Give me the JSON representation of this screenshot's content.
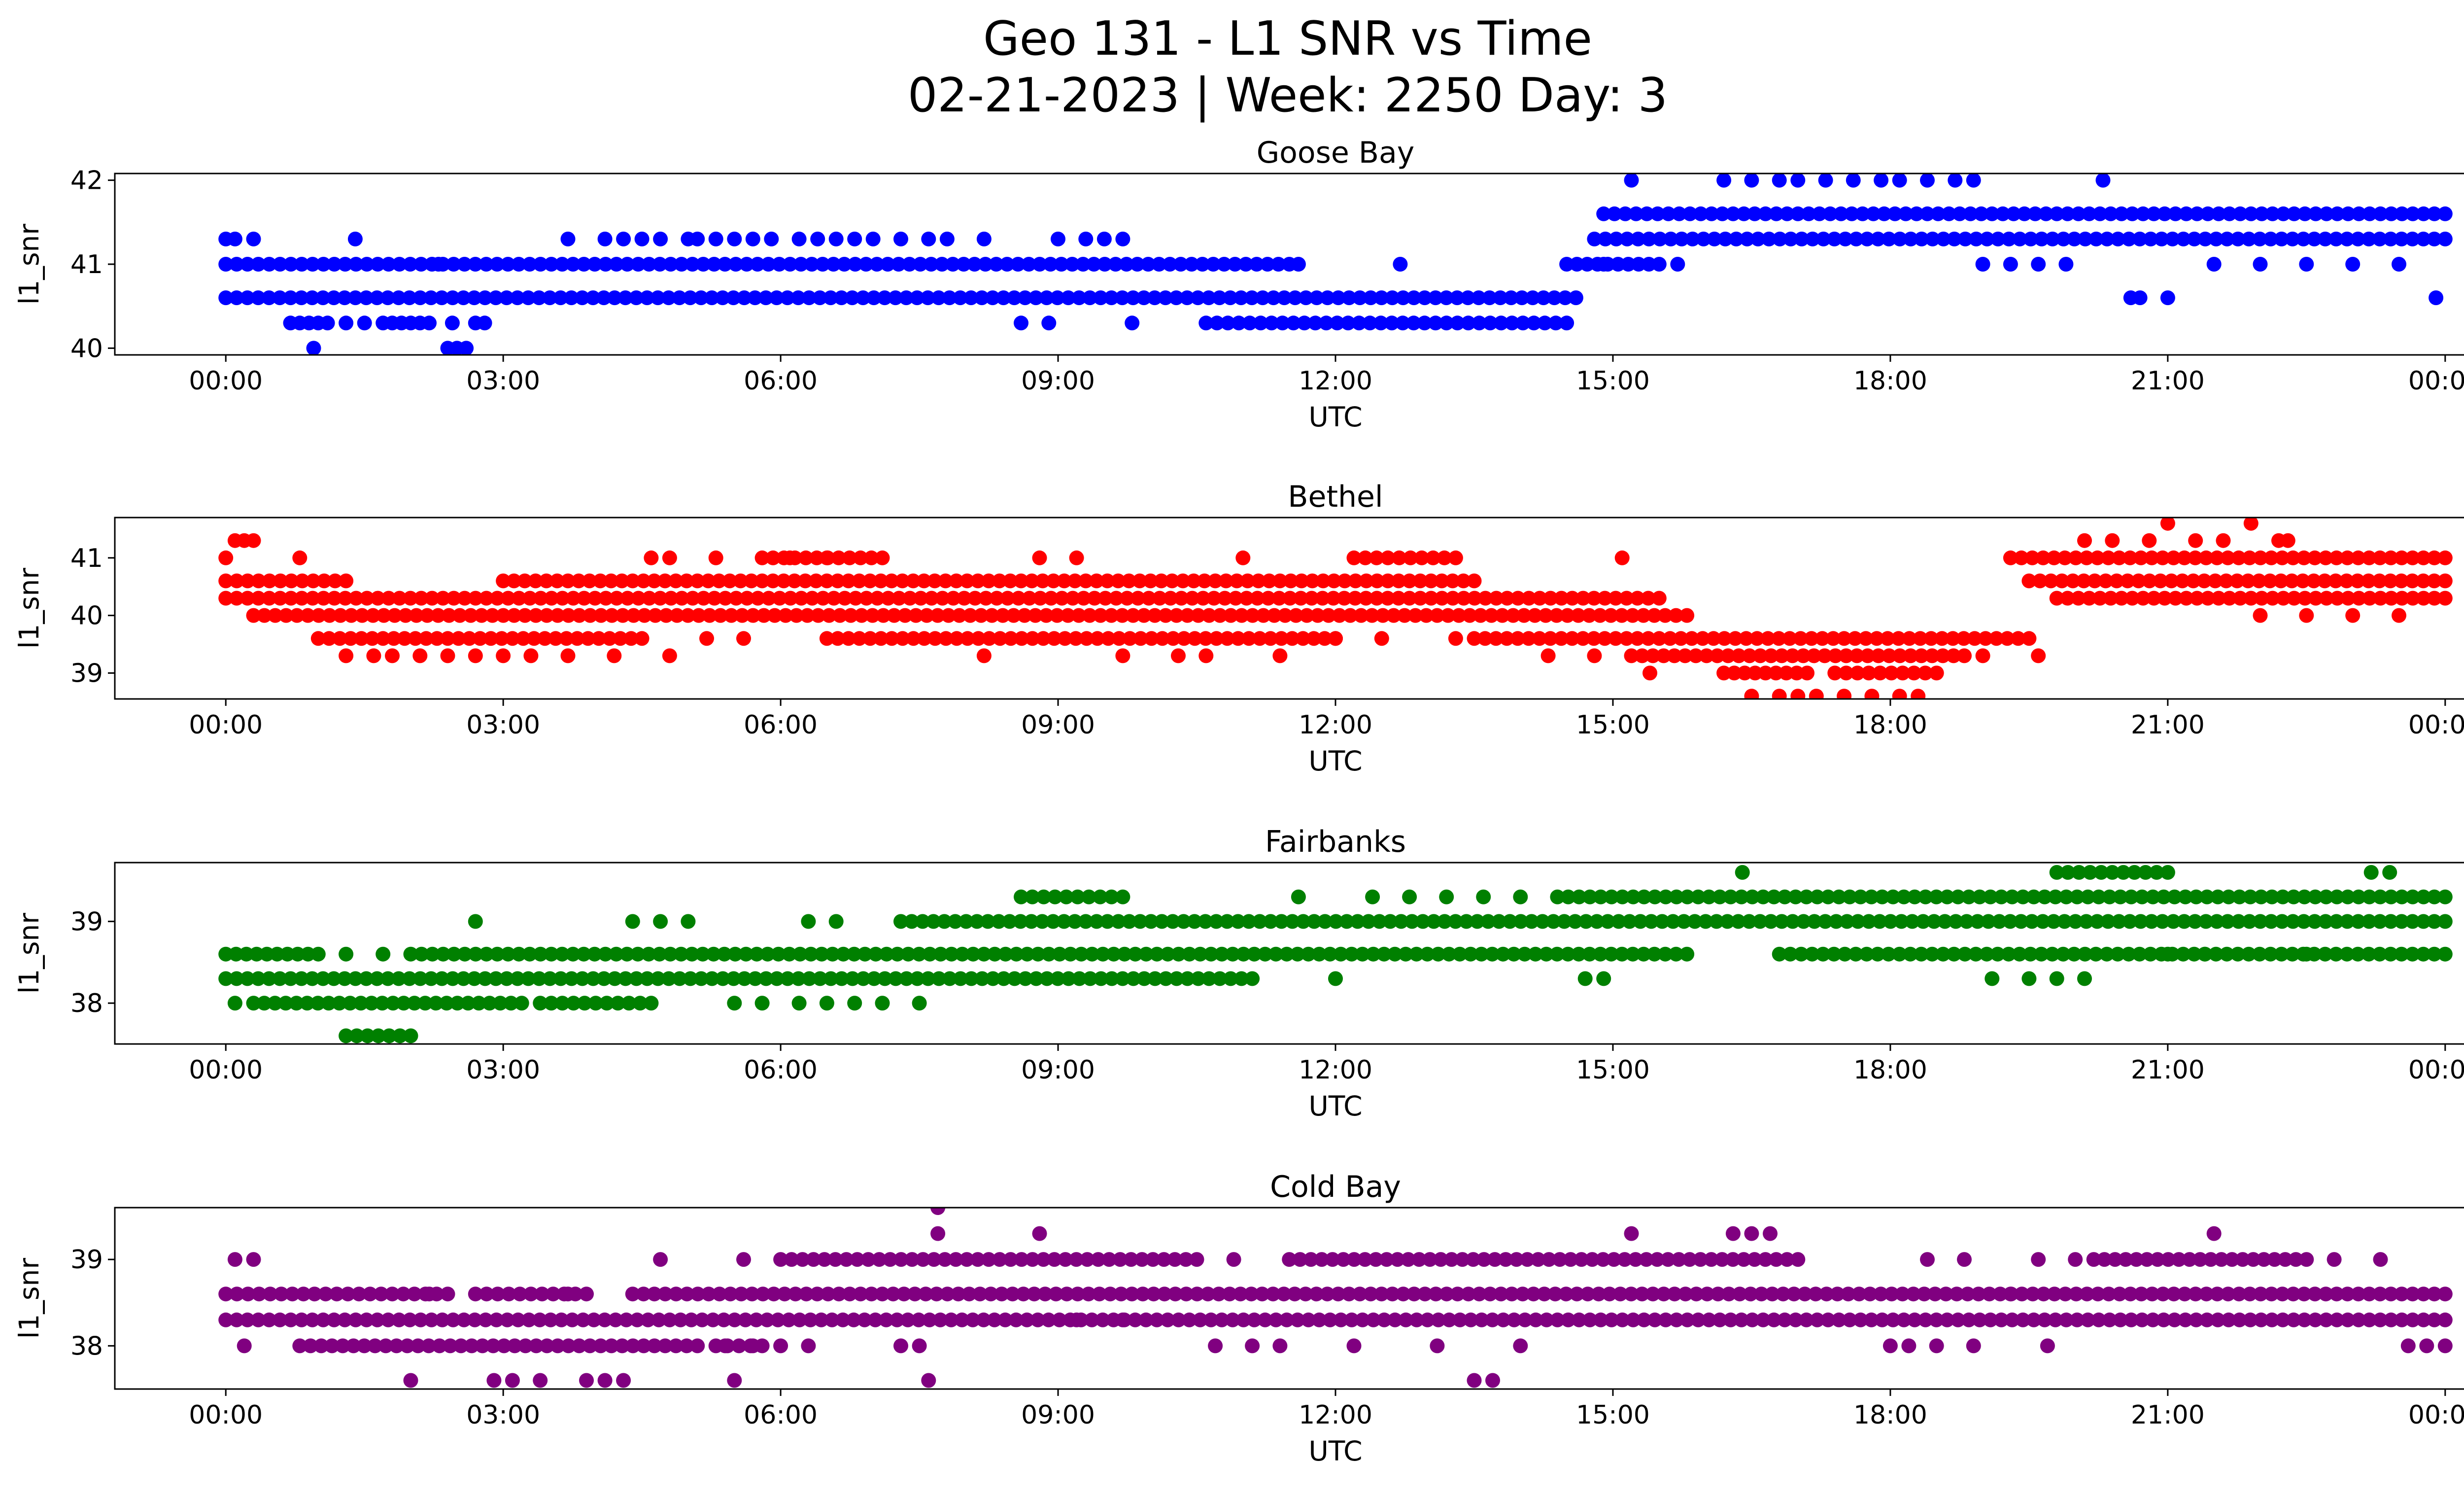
{
  "figure": {
    "title_line1": "Geo 131 - L1 SNR vs Time",
    "title_line2": "02-21-2023 | Week: 2250 Day: 3"
  },
  "chart_data": [
    {
      "type": "scatter",
      "title": "Goose Bay",
      "xlabel": "UTC",
      "ylabel": "l1_snr",
      "color": "#0000ff",
      "x_ticks": [
        "00:00",
        "03:00",
        "06:00",
        "09:00",
        "12:00",
        "15:00",
        "18:00",
        "21:00",
        "00:00"
      ],
      "xlim_hours": [
        -1.2,
        25.2
      ],
      "y_ticks": [
        40,
        41,
        42
      ],
      "ylim": [
        39.92,
        42.08
      ],
      "bands": [
        {
          "y": 40.6,
          "segments": [
            [
              0.0,
              14.6
            ]
          ]
        },
        {
          "y": 41.0,
          "segments": [
            [
              0.0,
              11.5
            ],
            [
              14.5,
              15.5
            ]
          ]
        },
        {
          "y": 40.3,
          "segments": [
            [
              10.6,
              14.5
            ]
          ]
        },
        {
          "y": 41.3,
          "segments": [
            [
              14.8,
              24.0
            ]
          ]
        },
        {
          "y": 41.6,
          "segments": [
            [
              14.9,
              24.0
            ]
          ]
        }
      ],
      "points": [
        [
          0.0,
          41.3
        ],
        [
          0.1,
          41.3
        ],
        [
          0.3,
          41.3
        ],
        [
          0.7,
          40.3
        ],
        [
          0.8,
          40.3
        ],
        [
          0.9,
          40.3
        ],
        [
          0.95,
          40.0
        ],
        [
          1.0,
          40.3
        ],
        [
          1.1,
          40.3
        ],
        [
          1.3,
          40.3
        ],
        [
          1.4,
          41.3
        ],
        [
          1.5,
          40.3
        ],
        [
          1.7,
          40.3
        ],
        [
          1.8,
          40.3
        ],
        [
          1.9,
          40.3
        ],
        [
          2.0,
          40.3
        ],
        [
          2.1,
          40.3
        ],
        [
          2.2,
          40.3
        ],
        [
          2.3,
          41.0
        ],
        [
          2.4,
          40.0
        ],
        [
          2.45,
          40.3
        ],
        [
          2.5,
          40.0
        ],
        [
          2.6,
          40.0
        ],
        [
          2.7,
          40.3
        ],
        [
          2.8,
          40.3
        ],
        [
          3.7,
          41.3
        ],
        [
          4.1,
          41.3
        ],
        [
          4.3,
          41.3
        ],
        [
          4.5,
          41.3
        ],
        [
          4.7,
          41.3
        ],
        [
          5.0,
          41.3
        ],
        [
          5.1,
          41.3
        ],
        [
          5.3,
          41.3
        ],
        [
          5.5,
          41.3
        ],
        [
          5.7,
          41.3
        ],
        [
          5.9,
          41.3
        ],
        [
          6.2,
          41.3
        ],
        [
          6.4,
          41.3
        ],
        [
          6.6,
          41.3
        ],
        [
          6.8,
          41.3
        ],
        [
          7.0,
          41.3
        ],
        [
          7.3,
          41.3
        ],
        [
          7.6,
          41.3
        ],
        [
          7.8,
          41.3
        ],
        [
          8.2,
          41.3
        ],
        [
          8.6,
          40.3
        ],
        [
          8.9,
          40.3
        ],
        [
          9.0,
          41.3
        ],
        [
          9.3,
          41.3
        ],
        [
          9.5,
          41.3
        ],
        [
          9.7,
          41.3
        ],
        [
          9.8,
          40.3
        ],
        [
          11.6,
          41.0
        ],
        [
          12.7,
          41.0
        ],
        [
          14.9,
          41.0
        ],
        [
          15.2,
          42.0
        ],
        [
          15.7,
          41.0
        ],
        [
          16.2,
          42.0
        ],
        [
          16.5,
          42.0
        ],
        [
          16.8,
          42.0
        ],
        [
          17.0,
          42.0
        ],
        [
          17.3,
          42.0
        ],
        [
          17.6,
          42.0
        ],
        [
          17.9,
          42.0
        ],
        [
          18.1,
          42.0
        ],
        [
          18.4,
          42.0
        ],
        [
          18.7,
          42.0
        ],
        [
          18.9,
          42.0
        ],
        [
          19.0,
          41.0
        ],
        [
          19.3,
          41.0
        ],
        [
          19.6,
          41.0
        ],
        [
          19.9,
          41.0
        ],
        [
          20.3,
          42.0
        ],
        [
          20.6,
          40.6
        ],
        [
          20.7,
          40.6
        ],
        [
          21.0,
          40.6
        ],
        [
          21.5,
          41.0
        ],
        [
          22.0,
          41.0
        ],
        [
          22.5,
          41.0
        ],
        [
          23.0,
          41.0
        ],
        [
          23.5,
          41.0
        ],
        [
          23.9,
          40.6
        ]
      ]
    },
    {
      "type": "scatter",
      "title": "Bethel",
      "xlabel": "UTC",
      "ylabel": "l1_snr",
      "color": "#ff0000",
      "x_ticks": [
        "00:00",
        "03:00",
        "06:00",
        "09:00",
        "12:00",
        "15:00",
        "18:00",
        "21:00",
        "00:00"
      ],
      "xlim_hours": [
        -1.2,
        25.2
      ],
      "y_ticks": [
        39,
        40,
        41
      ],
      "ylim": [
        38.55,
        41.7
      ],
      "bands": [
        {
          "y": 40.3,
          "segments": [
            [
              0.0,
              15.5
            ]
          ]
        },
        {
          "y": 40.0,
          "segments": [
            [
              0.3,
              15.8
            ]
          ]
        },
        {
          "y": 39.6,
          "segments": [
            [
              1.0,
              4.5
            ],
            [
              6.5,
              12.0
            ],
            [
              13.5,
              19.5
            ]
          ]
        },
        {
          "y": 40.6,
          "segments": [
            [
              0.0,
              1.3
            ],
            [
              3.0,
              13.5
            ],
            [
              19.5,
              24.0
            ]
          ]
        },
        {
          "y": 41.0,
          "segments": [
            [
              5.8,
              7.1
            ],
            [
              12.2,
              13.3
            ],
            [
              19.3,
              24.0
            ]
          ]
        },
        {
          "y": 39.3,
          "segments": [
            [
              15.2,
              18.8
            ]
          ]
        },
        {
          "y": 39.0,
          "segments": [
            [
              16.2,
              17.1
            ],
            [
              17.4,
              18.5
            ]
          ]
        },
        {
          "y": 40.3,
          "segments": [
            [
              19.8,
              24.0
            ]
          ]
        }
      ],
      "points": [
        [
          0.0,
          41.0
        ],
        [
          0.1,
          41.3
        ],
        [
          0.2,
          41.3
        ],
        [
          0.3,
          41.3
        ],
        [
          0.8,
          41.0
        ],
        [
          1.3,
          39.3
        ],
        [
          1.6,
          39.3
        ],
        [
          1.8,
          39.3
        ],
        [
          2.1,
          39.3
        ],
        [
          2.4,
          39.3
        ],
        [
          2.7,
          39.3
        ],
        [
          3.0,
          39.3
        ],
        [
          3.3,
          39.3
        ],
        [
          3.7,
          39.3
        ],
        [
          4.2,
          39.3
        ],
        [
          4.6,
          41.0
        ],
        [
          4.8,
          41.0
        ],
        [
          4.8,
          39.3
        ],
        [
          5.3,
          41.0
        ],
        [
          5.2,
          39.6
        ],
        [
          5.6,
          39.6
        ],
        [
          6.1,
          41.0
        ],
        [
          6.5,
          41.0
        ],
        [
          8.2,
          39.3
        ],
        [
          8.8,
          41.0
        ],
        [
          9.2,
          41.0
        ],
        [
          9.7,
          39.3
        ],
        [
          10.3,
          39.3
        ],
        [
          10.6,
          39.3
        ],
        [
          11.0,
          41.0
        ],
        [
          11.4,
          39.3
        ],
        [
          12.0,
          39.6
        ],
        [
          12.5,
          39.6
        ],
        [
          13.3,
          39.6
        ],
        [
          14.3,
          39.3
        ],
        [
          14.8,
          39.3
        ],
        [
          15.1,
          41.0
        ],
        [
          15.4,
          39.0
        ],
        [
          16.5,
          38.6
        ],
        [
          16.8,
          38.6
        ],
        [
          17.0,
          38.6
        ],
        [
          17.2,
          38.6
        ],
        [
          17.5,
          38.6
        ],
        [
          17.8,
          38.6
        ],
        [
          18.1,
          38.6
        ],
        [
          18.3,
          38.6
        ],
        [
          19.0,
          39.3
        ],
        [
          19.6,
          39.3
        ],
        [
          20.1,
          41.3
        ],
        [
          20.4,
          41.3
        ],
        [
          20.8,
          41.3
        ],
        [
          21.0,
          41.6
        ],
        [
          21.3,
          41.3
        ],
        [
          21.6,
          41.3
        ],
        [
          21.9,
          41.6
        ],
        [
          22.2,
          41.3
        ],
        [
          22.3,
          41.3
        ],
        [
          22.0,
          40.0
        ],
        [
          22.5,
          40.0
        ],
        [
          23.0,
          40.0
        ],
        [
          23.5,
          40.0
        ]
      ]
    },
    {
      "type": "scatter",
      "title": "Fairbanks",
      "xlabel": "UTC",
      "ylabel": "l1_snr",
      "color": "#008000",
      "x_ticks": [
        "00:00",
        "03:00",
        "06:00",
        "09:00",
        "12:00",
        "15:00",
        "18:00",
        "21:00",
        "00:00"
      ],
      "xlim_hours": [
        -1.2,
        25.2
      ],
      "y_ticks": [
        38,
        39
      ],
      "ylim": [
        37.5,
        39.72
      ],
      "bands": [
        {
          "y": 38.3,
          "segments": [
            [
              0.0,
              11.1
            ]
          ]
        },
        {
          "y": 38.6,
          "segments": [
            [
              0.0,
              1.0
            ],
            [
              2.0,
              15.8
            ],
            [
              16.8,
              24.0
            ]
          ]
        },
        {
          "y": 38.0,
          "segments": [
            [
              0.3,
              3.2
            ],
            [
              3.4,
              4.6
            ]
          ]
        },
        {
          "y": 39.0,
          "segments": [
            [
              7.3,
              24.0
            ]
          ]
        },
        {
          "y": 39.3,
          "segments": [
            [
              8.6,
              9.7
            ],
            [
              14.4,
              24.0
            ]
          ]
        },
        {
          "y": 39.6,
          "segments": [
            [
              19.8,
              21.0
            ]
          ]
        },
        {
          "y": 37.6,
          "segments": [
            [
              1.3,
              2.0
            ]
          ]
        }
      ],
      "points": [
        [
          0.1,
          38.0
        ],
        [
          1.3,
          38.6
        ],
        [
          1.7,
          38.6
        ],
        [
          2.7,
          39.0
        ],
        [
          4.4,
          39.0
        ],
        [
          4.7,
          39.0
        ],
        [
          5.0,
          39.0
        ],
        [
          5.5,
          38.0
        ],
        [
          5.8,
          38.0
        ],
        [
          6.2,
          38.0
        ],
        [
          6.3,
          39.0
        ],
        [
          6.6,
          39.0
        ],
        [
          6.5,
          38.0
        ],
        [
          6.8,
          38.0
        ],
        [
          7.1,
          38.0
        ],
        [
          7.5,
          38.0
        ],
        [
          11.6,
          39.3
        ],
        [
          12.0,
          38.3
        ],
        [
          12.4,
          39.3
        ],
        [
          12.8,
          39.3
        ],
        [
          13.2,
          39.3
        ],
        [
          13.6,
          39.3
        ],
        [
          14.0,
          39.3
        ],
        [
          14.7,
          38.3
        ],
        [
          14.9,
          38.3
        ],
        [
          16.4,
          39.6
        ],
        [
          19.1,
          38.3
        ],
        [
          19.5,
          38.3
        ],
        [
          19.8,
          38.3
        ],
        [
          20.1,
          38.3
        ],
        [
          21.0,
          38.6
        ],
        [
          21.4,
          38.6
        ],
        [
          22.5,
          38.6
        ],
        [
          23.2,
          39.6
        ],
        [
          23.4,
          39.6
        ]
      ]
    },
    {
      "type": "scatter",
      "title": "Cold Bay",
      "xlabel": "UTC",
      "ylabel": "l1_snr",
      "color": "#800080",
      "x_ticks": [
        "00:00",
        "03:00",
        "06:00",
        "09:00",
        "12:00",
        "15:00",
        "18:00",
        "21:00",
        "00:00"
      ],
      "xlim_hours": [
        -1.2,
        25.2
      ],
      "y_ticks": [
        38,
        39
      ],
      "ylim": [
        37.5,
        39.6
      ],
      "bands": [
        {
          "y": 38.3,
          "segments": [
            [
              0.0,
              24.0
            ]
          ]
        },
        {
          "y": 38.6,
          "segments": [
            [
              0.0,
              2.4
            ],
            [
              2.7,
              3.9
            ],
            [
              4.4,
              24.0
            ]
          ]
        },
        {
          "y": 38.0,
          "segments": [
            [
              0.8,
              5.1
            ],
            [
              5.3,
              5.8
            ]
          ]
        },
        {
          "y": 39.0,
          "segments": [
            [
              6.0,
              10.5
            ],
            [
              11.5,
              17.0
            ],
            [
              20.2,
              22.5
            ]
          ]
        }
      ],
      "points": [
        [
          0.1,
          39.0
        ],
        [
          0.3,
          39.0
        ],
        [
          0.2,
          38.0
        ],
        [
          2.0,
          37.6
        ],
        [
          2.2,
          38.6
        ],
        [
          2.9,
          37.6
        ],
        [
          3.1,
          37.6
        ],
        [
          3.4,
          37.6
        ],
        [
          3.7,
          38.6
        ],
        [
          3.9,
          37.6
        ],
        [
          4.1,
          37.6
        ],
        [
          4.3,
          37.6
        ],
        [
          4.7,
          39.0
        ],
        [
          5.4,
          38.0
        ],
        [
          5.7,
          38.0
        ],
        [
          5.6,
          39.0
        ],
        [
          5.5,
          37.6
        ],
        [
          6.0,
          38.0
        ],
        [
          6.3,
          38.0
        ],
        [
          7.3,
          38.0
        ],
        [
          7.5,
          38.0
        ],
        [
          7.6,
          37.6
        ],
        [
          7.7,
          39.3
        ],
        [
          7.7,
          39.6
        ],
        [
          8.8,
          39.3
        ],
        [
          9.2,
          38.3
        ],
        [
          9.7,
          38.3
        ],
        [
          10.7,
          38.0
        ],
        [
          10.9,
          39.0
        ],
        [
          11.1,
          38.0
        ],
        [
          11.4,
          38.0
        ],
        [
          12.2,
          38.0
        ],
        [
          13.1,
          38.0
        ],
        [
          13.5,
          37.6
        ],
        [
          13.7,
          37.6
        ],
        [
          14.0,
          38.0
        ],
        [
          15.2,
          39.3
        ],
        [
          16.3,
          39.3
        ],
        [
          16.5,
          39.3
        ],
        [
          16.7,
          39.3
        ],
        [
          18.0,
          38.0
        ],
        [
          18.2,
          38.0
        ],
        [
          18.5,
          38.0
        ],
        [
          18.9,
          38.0
        ],
        [
          18.4,
          39.0
        ],
        [
          18.8,
          39.0
        ],
        [
          19.3,
          38.6
        ],
        [
          19.7,
          38.0
        ],
        [
          19.6,
          39.0
        ],
        [
          20.0,
          39.0
        ],
        [
          21.5,
          39.3
        ],
        [
          22.8,
          39.0
        ],
        [
          23.3,
          39.0
        ],
        [
          23.6,
          38.0
        ],
        [
          23.8,
          38.0
        ],
        [
          24.0,
          38.0
        ]
      ]
    }
  ]
}
